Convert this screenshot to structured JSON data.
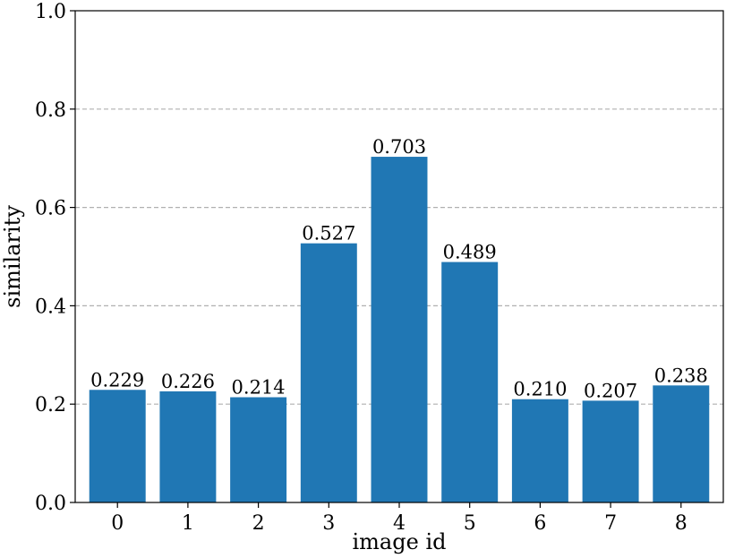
{
  "chart_data": {
    "type": "bar",
    "categories": [
      "0",
      "1",
      "2",
      "3",
      "4",
      "5",
      "6",
      "7",
      "8"
    ],
    "values": [
      0.229,
      0.226,
      0.214,
      0.527,
      0.703,
      0.489,
      0.21,
      0.207,
      0.238
    ],
    "value_labels": [
      "0.229",
      "0.226",
      "0.214",
      "0.527",
      "0.703",
      "0.489",
      "0.210",
      "0.207",
      "0.238"
    ],
    "xlabel": "image id",
    "ylabel": "similarity",
    "ylim": [
      0.0,
      1.0
    ],
    "yticks": [
      "0.0",
      "0.2",
      "0.4",
      "0.6",
      "0.8",
      "1.0"
    ],
    "ytick_values": [
      0.0,
      0.2,
      0.4,
      0.6,
      0.8,
      1.0
    ],
    "grid": "y-dashed",
    "bar_color": "#2077b4",
    "grid_color": "#b0b0b0"
  }
}
